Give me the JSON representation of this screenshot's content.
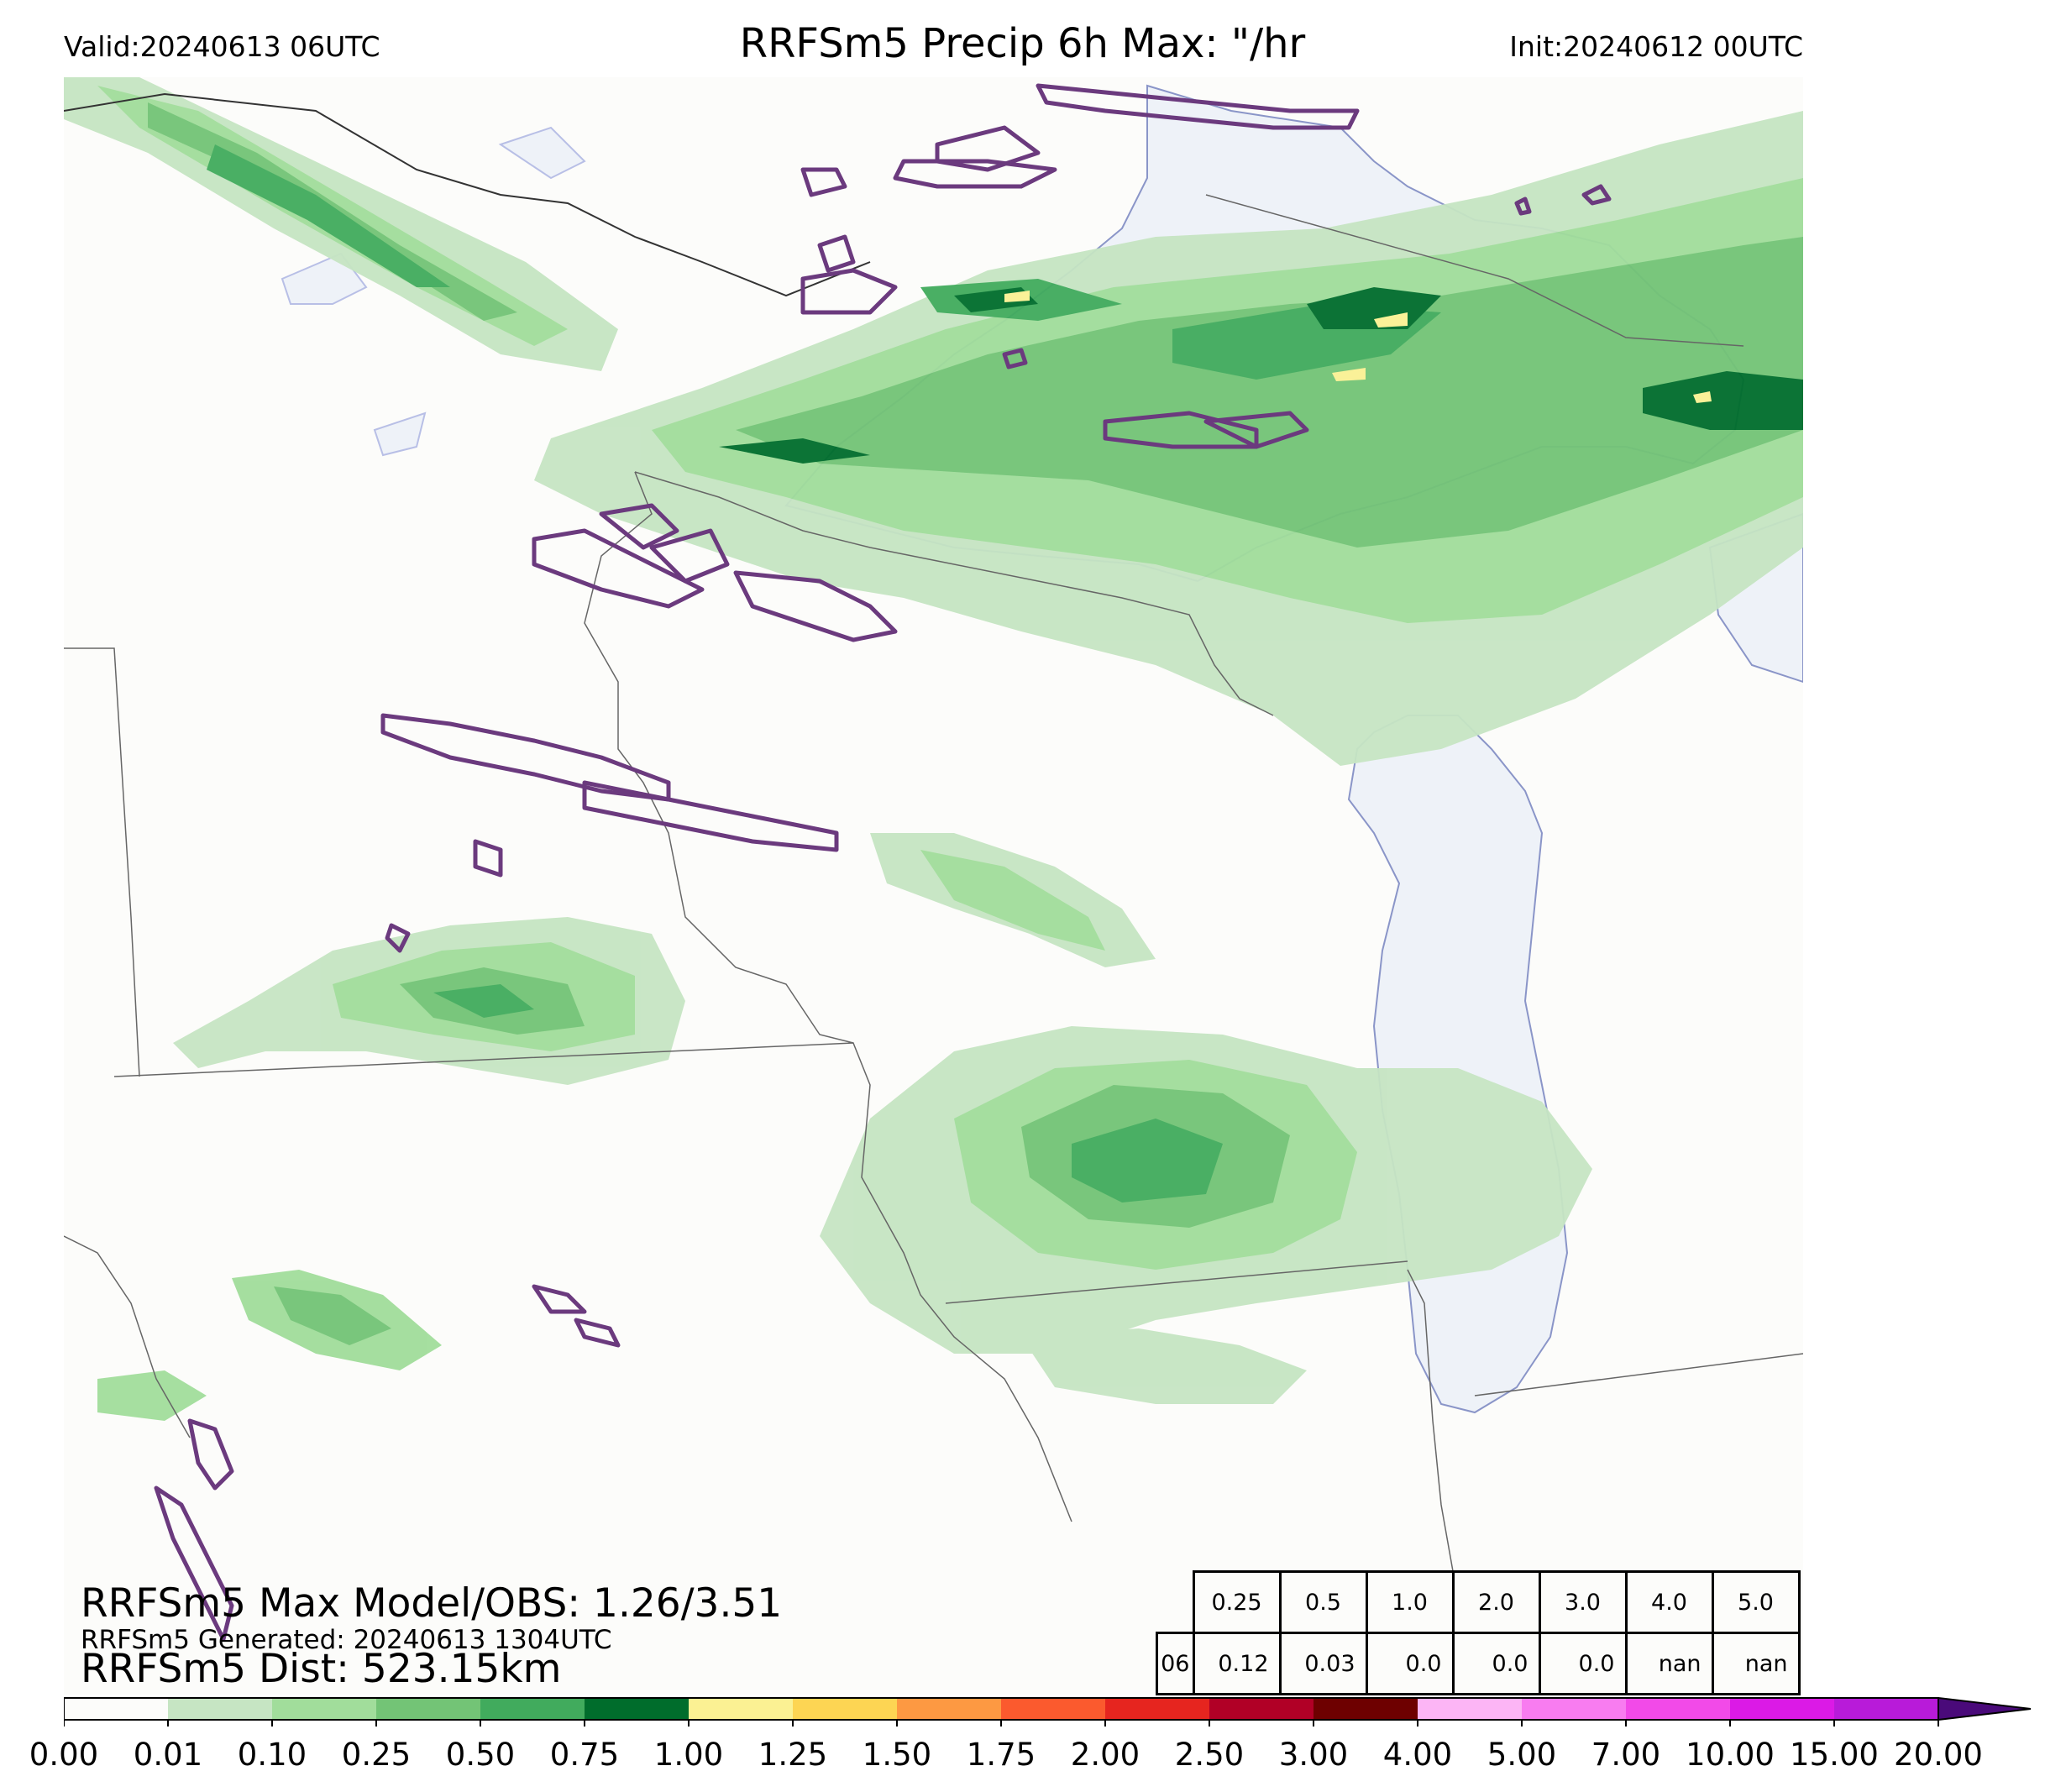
{
  "header": {
    "valid": "Valid:20240613 06UTC",
    "title": "RRFSm5 Precip 6h Max: \"/hr",
    "init": "Init:20240612 00UTC"
  },
  "annotations": {
    "max_model_obs": "RRFSm5 Max Model/OBS: 1.26/3.51",
    "generated": "RRFSm5 Generated: 20240613 1304UTC",
    "dist": "RRFSm5 Dist: 523.15km"
  },
  "stats_table": {
    "thresholds": [
      "0.25",
      "0.5",
      "1.0",
      "2.0",
      "3.0",
      "4.0",
      "5.0"
    ],
    "row_label": "06",
    "values": [
      "0.12",
      "0.03",
      "0.0",
      "0.0",
      "0.0",
      "nan",
      "nan"
    ]
  },
  "colorbar": {
    "ticks": [
      "0.00",
      "0.01",
      "0.10",
      "0.25",
      "0.50",
      "0.75",
      "1.00",
      "1.25",
      "1.50",
      "1.75",
      "2.00",
      "2.50",
      "3.00",
      "4.00",
      "5.00",
      "7.00",
      "10.00",
      "15.00",
      "20.00"
    ],
    "colors": [
      "#fcfcfa",
      "#c6e5c3",
      "#a1dd9b",
      "#73c476",
      "#41ab5d",
      "#006d2c",
      "#fbf193",
      "#fdd553",
      "#fd9942",
      "#fb5a2e",
      "#e6251f",
      "#b10026",
      "#6e0000",
      "#fcb5f5",
      "#f87cf0",
      "#f24ae8",
      "#db1ae6",
      "#b81bd9",
      "#7a10c8"
    ],
    "extend_color": "#4a0a7a"
  },
  "map_colors": {
    "background": "#fcfcfa",
    "lake": "#eef2f8",
    "lake_edge": "#8a95c8",
    "border": "#555555",
    "obs_contour": "#6b3a7e",
    "precip": [
      "#c6e5c3",
      "#a1dd9b",
      "#73c476",
      "#41ab5d",
      "#006d2c",
      "#fbf193"
    ]
  }
}
